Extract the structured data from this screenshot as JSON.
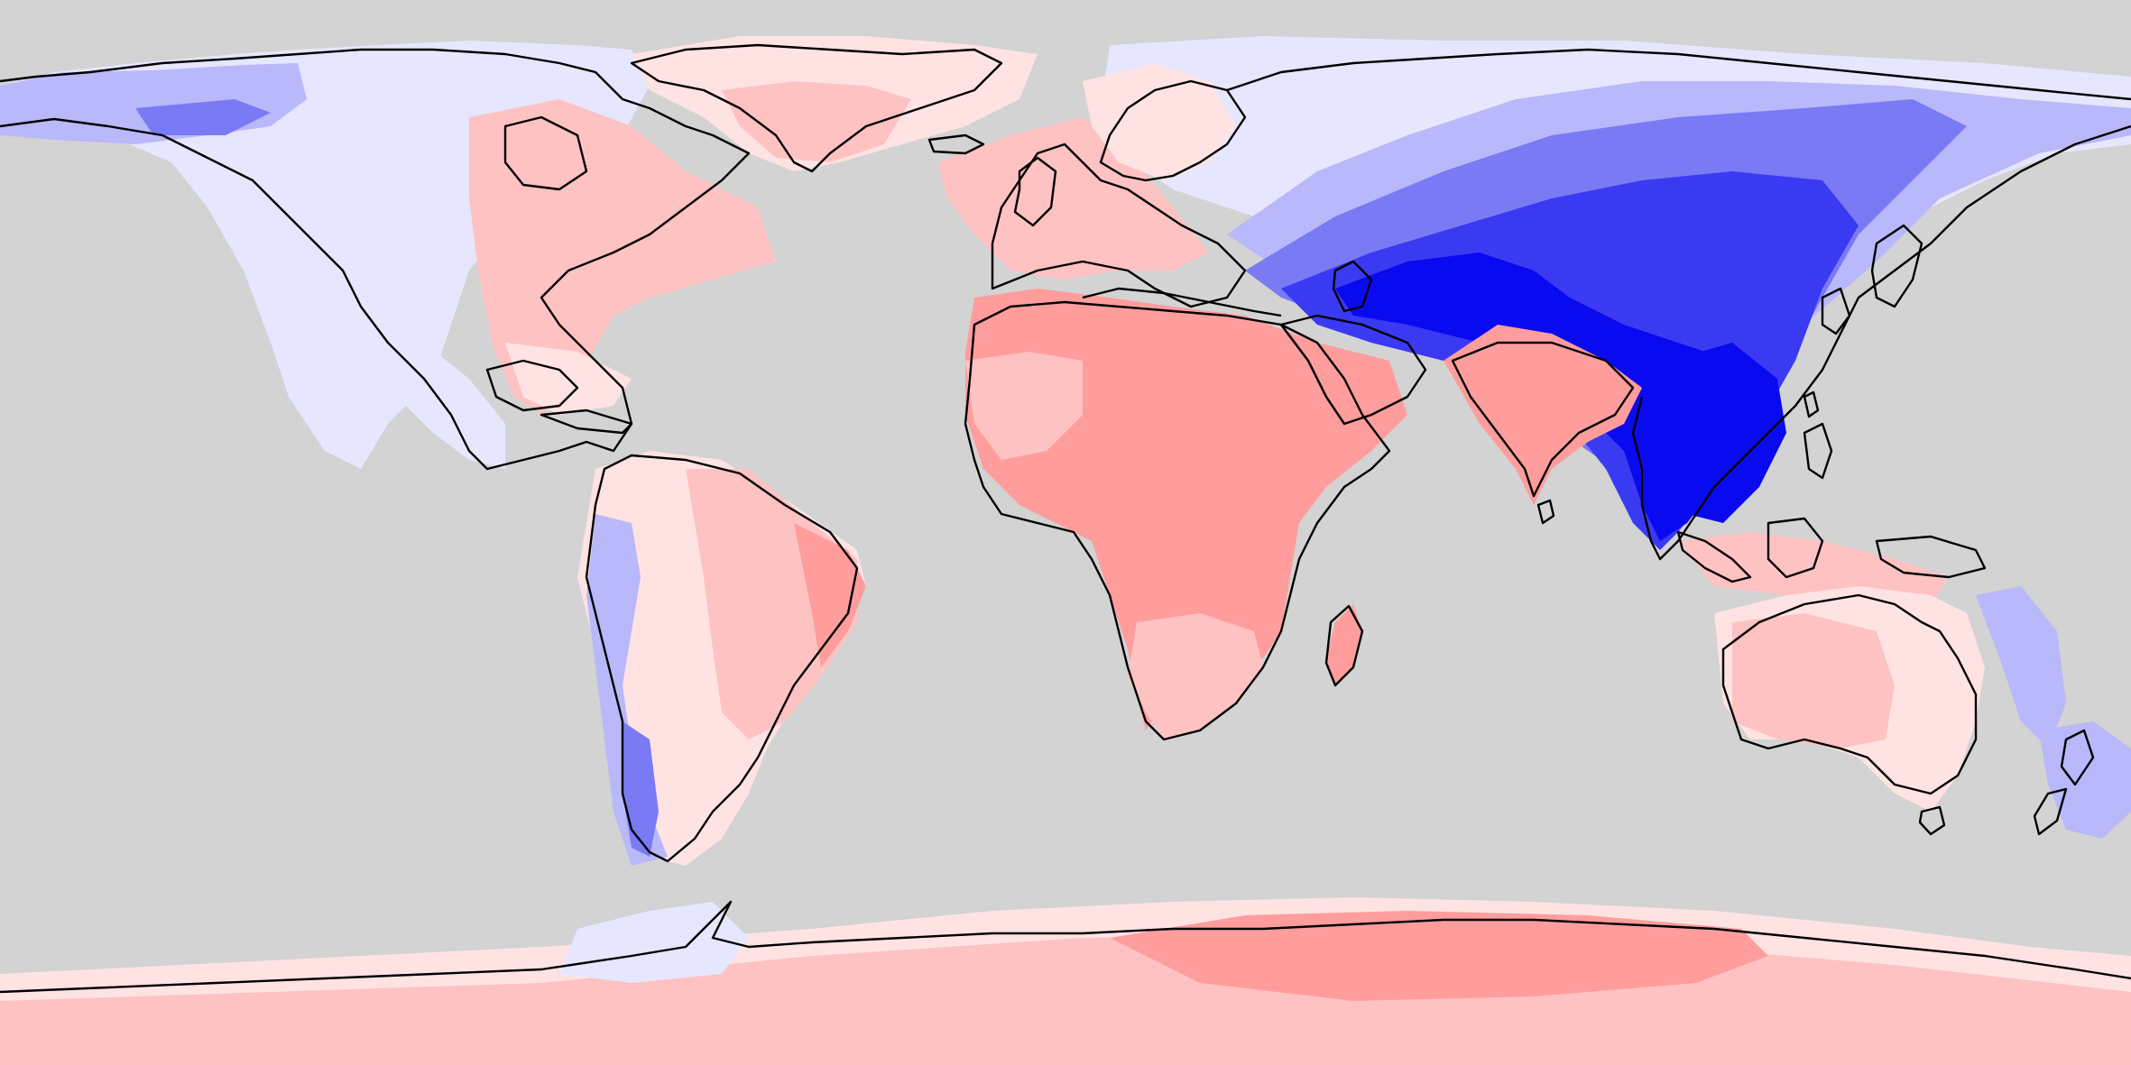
{
  "map": {
    "projection": "equirectangular",
    "extent": {
      "lon": [
        -180,
        180
      ],
      "lat": [
        -90,
        90
      ]
    },
    "background_color": "#d3d3d3",
    "coastline_color": "#000000",
    "color_scale": {
      "type": "diverging",
      "colors": {
        "deep_blue": "#0a0af0",
        "blue": "#3a3af2",
        "mid_blue": "#7a7af5",
        "light_blue": "#b8b8fa",
        "pale_blue": "#e6e6ff",
        "white": "#ffffff",
        "pale_red": "#ffe3e3",
        "light_red": "#ffc2c2",
        "red": "#ff9d9d",
        "deep_red": "#ff8c8c"
      }
    },
    "regions": [
      "north-america",
      "greenland",
      "south-america",
      "europe",
      "africa",
      "madagascar",
      "middle-east",
      "india",
      "siberia",
      "central-asia",
      "china",
      "southeast-asia",
      "australia",
      "new-zealand",
      "antarctica"
    ]
  }
}
